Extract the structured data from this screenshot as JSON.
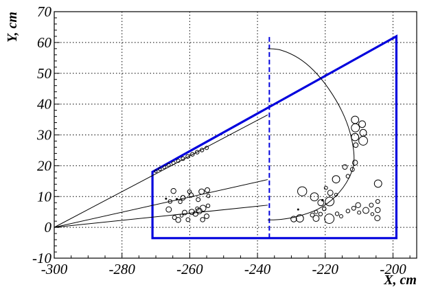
{
  "chart_data": {
    "type": "scatter",
    "title": "",
    "xlabel": "X, cm",
    "ylabel": "Y, cm",
    "xlim": [
      -300,
      -193
    ],
    "ylim": [
      -10,
      70
    ],
    "grid": true,
    "x_ticks": [
      -300,
      -280,
      -260,
      -240,
      -220,
      -200
    ],
    "x_tick_labels": [
      "-300",
      "-280",
      "-260",
      "-240",
      "-220",
      "-200"
    ],
    "y_ticks": [
      -10,
      0,
      10,
      20,
      30,
      40,
      50,
      60,
      70
    ],
    "y_tick_labels": [
      "-10",
      "0",
      "10",
      "20",
      "30",
      "40",
      "50",
      "60",
      "70"
    ],
    "colors": {
      "frame": "#0000dd",
      "tracks": "#000000",
      "grid": "#000000"
    },
    "shapes": {
      "frame_polygon": [
        [
          -271,
          -3.5
        ],
        [
          -271,
          18
        ],
        [
          -199,
          62
        ],
        [
          -199,
          -3.5
        ]
      ],
      "vertical_dashed_line_x": -236.5,
      "vertical_dashed_line_y": [
        -3.5,
        62
      ],
      "straight_tracks": [
        [
          [
            -300,
            0
          ],
          [
            -237,
            36.5
          ]
        ],
        [
          [
            -300,
            0
          ],
          [
            -237,
            15.5
          ]
        ],
        [
          [
            -300,
            0
          ],
          [
            -237,
            7.2
          ]
        ]
      ],
      "curved_tracks": [
        [
          [
            -237,
            58
          ],
          [
            -233,
            57.5
          ],
          [
            -228,
            55
          ],
          [
            -223.5,
            51
          ],
          [
            -219,
            45
          ],
          [
            -215,
            37.5
          ],
          [
            -212.5,
            30
          ],
          [
            -211.5,
            22
          ],
          [
            -213,
            16
          ],
          [
            -217,
            10
          ],
          [
            -222,
            6
          ],
          [
            -228,
            3.6
          ],
          [
            -233,
            2.6
          ],
          [
            -237,
            2.4
          ]
        ]
      ]
    },
    "points": [
      {
        "x": -270,
        "y": 18.2,
        "size": 0.4
      },
      {
        "x": -268.8,
        "y": 18.9,
        "size": 0.45
      },
      {
        "x": -267.5,
        "y": 19.5,
        "size": 0.45
      },
      {
        "x": -266.2,
        "y": 20.2,
        "size": 0.5
      },
      {
        "x": -264.8,
        "y": 20.9,
        "size": 0.5
      },
      {
        "x": -263.4,
        "y": 21.6,
        "size": 0.5
      },
      {
        "x": -262,
        "y": 22.3,
        "size": 0.55
      },
      {
        "x": -260.6,
        "y": 23.0,
        "size": 0.55
      },
      {
        "x": -259.2,
        "y": 23.7,
        "size": 0.55
      },
      {
        "x": -257.8,
        "y": 24.4,
        "size": 0.55
      },
      {
        "x": -256.4,
        "y": 25.1,
        "size": 0.55
      },
      {
        "x": -255,
        "y": 25.8,
        "size": 0.5
      },
      {
        "x": -264.8,
        "y": 11.8,
        "size": 0.75
      },
      {
        "x": -262,
        "y": 9.6,
        "size": 0.7
      },
      {
        "x": -259.6,
        "y": 10.5,
        "size": 0.65
      },
      {
        "x": -257.5,
        "y": 9.0,
        "size": 0.6
      },
      {
        "x": -256.5,
        "y": 11.6,
        "size": 0.8
      },
      {
        "x": -254.8,
        "y": 12.1,
        "size": 0.7
      },
      {
        "x": -254.5,
        "y": 10.2,
        "size": 0.5
      },
      {
        "x": -262.8,
        "y": 8.3,
        "size": 0.55
      },
      {
        "x": -260.1,
        "y": 11.6,
        "size": 0.55
      },
      {
        "x": -266.2,
        "y": 5.8,
        "size": 0.8
      },
      {
        "x": -265.8,
        "y": 8.4,
        "size": 0.55
      },
      {
        "x": -264.5,
        "y": 3.2,
        "size": 0.6
      },
      {
        "x": -263.4,
        "y": 2.4,
        "size": 0.75
      },
      {
        "x": -261.5,
        "y": 4.8,
        "size": 0.7
      },
      {
        "x": -260.5,
        "y": 2.5,
        "size": 0.6
      },
      {
        "x": -259.4,
        "y": 5.0,
        "size": 0.8
      },
      {
        "x": -258.3,
        "y": 4.4,
        "size": 0.75
      },
      {
        "x": -257.2,
        "y": 5.3,
        "size": 0.85
      },
      {
        "x": -256.1,
        "y": 6.2,
        "size": 0.9
      },
      {
        "x": -255.0,
        "y": 3.6,
        "size": 0.7
      },
      {
        "x": -254.6,
        "y": 7.0,
        "size": 0.55
      },
      {
        "x": -256.2,
        "y": 2.5,
        "size": 0.65
      },
      {
        "x": -257.8,
        "y": 6.1,
        "size": 0.5
      },
      {
        "x": -262.4,
        "y": 3.8,
        "size": 0.45
      },
      {
        "x": -211.2,
        "y": 34.9,
        "size": 1.1
      },
      {
        "x": -211.1,
        "y": 32.3,
        "size": 1.2
      },
      {
        "x": -211.2,
        "y": 29.3,
        "size": 1.1
      },
      {
        "x": -209.1,
        "y": 33.5,
        "size": 1.0
      },
      {
        "x": -208.8,
        "y": 30.7,
        "size": 1.0
      },
      {
        "x": -208.8,
        "y": 28.1,
        "size": 1.3
      },
      {
        "x": -211.0,
        "y": 26.7,
        "size": 0.7
      },
      {
        "x": -211.2,
        "y": 21.0,
        "size": 0.75
      },
      {
        "x": -212.0,
        "y": 18.8,
        "size": 0.6
      },
      {
        "x": -213.3,
        "y": 16.6,
        "size": 0.55
      },
      {
        "x": -214.2,
        "y": 19.6,
        "size": 0.7
      },
      {
        "x": -216.8,
        "y": 15.6,
        "size": 1.1
      },
      {
        "x": -218.5,
        "y": 11.2,
        "size": 0.8
      },
      {
        "x": -219.8,
        "y": 12.8,
        "size": 0.5
      },
      {
        "x": -216.8,
        "y": 10.6,
        "size": 0.45
      },
      {
        "x": -226.8,
        "y": 11.7,
        "size": 1.35
      },
      {
        "x": -223.2,
        "y": 9.9,
        "size": 1.2
      },
      {
        "x": -221.3,
        "y": 8.0,
        "size": 0.9
      },
      {
        "x": -218.7,
        "y": 8.4,
        "size": 1.3
      },
      {
        "x": -220.3,
        "y": 6.0,
        "size": 0.55
      },
      {
        "x": -222.7,
        "y": 5.0,
        "size": 0.5
      },
      {
        "x": -221.4,
        "y": 4.3,
        "size": 0.55
      },
      {
        "x": -223.8,
        "y": 4.0,
        "size": 0.6
      },
      {
        "x": -222.7,
        "y": 2.9,
        "size": 0.9
      },
      {
        "x": -227.5,
        "y": 2.9,
        "size": 1.1
      },
      {
        "x": -229.3,
        "y": 2.7,
        "size": 0.85
      },
      {
        "x": -218.8,
        "y": 2.8,
        "size": 1.4
      },
      {
        "x": -216.5,
        "y": 4.4,
        "size": 0.55
      },
      {
        "x": -215.3,
        "y": 3.6,
        "size": 0.5
      },
      {
        "x": -213.3,
        "y": 5.3,
        "size": 0.55
      },
      {
        "x": -210.3,
        "y": 7.2,
        "size": 0.75
      },
      {
        "x": -211.6,
        "y": 6.2,
        "size": 0.6
      },
      {
        "x": -210.0,
        "y": 4.8,
        "size": 0.5
      },
      {
        "x": -208.0,
        "y": 5.5,
        "size": 0.9
      },
      {
        "x": -206.4,
        "y": 7.2,
        "size": 0.6
      },
      {
        "x": -204.5,
        "y": 8.4,
        "size": 0.6
      },
      {
        "x": -204.5,
        "y": 5.6,
        "size": 0.75
      },
      {
        "x": -204.6,
        "y": 3.0,
        "size": 0.8
      },
      {
        "x": -206.1,
        "y": 4.3,
        "size": 0.45
      },
      {
        "x": -204.4,
        "y": 14.2,
        "size": 1.1
      },
      {
        "x": -228.0,
        "y": 5.8,
        "size": 0.2
      },
      {
        "x": -220.8,
        "y": 8.8,
        "size": 0.25
      },
      {
        "x": -263.8,
        "y": 9.1,
        "size": 0.25
      },
      {
        "x": -267.0,
        "y": 9.3,
        "size": 0.2
      }
    ]
  }
}
